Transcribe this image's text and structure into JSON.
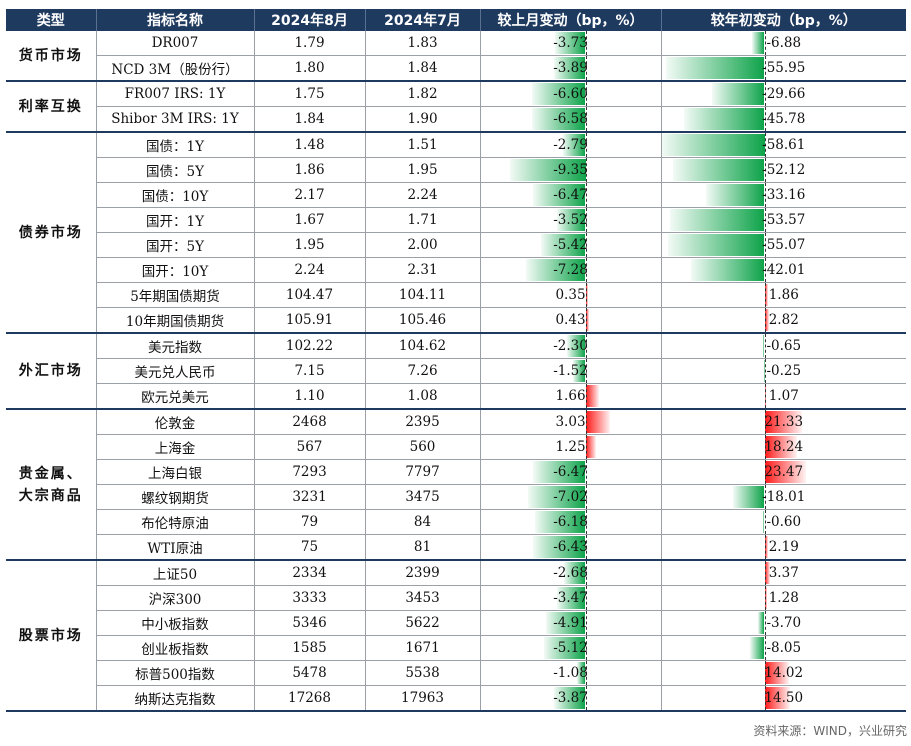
{
  "headers": [
    "类型",
    "指标名称",
    "2024年8月",
    "2024年7月",
    "较上月变动（bp，%）",
    "较年初变动（bp，%）"
  ],
  "colors": {
    "header_bg": "#1f3a5f",
    "positive": "#ff1a1a",
    "negative": "#0ea34a"
  },
  "groups": [
    {
      "name": "货币市场",
      "rows": [
        {
          "name": "DR007",
          "aug": "1.79",
          "jul": "1.83",
          "mom": "-3.73",
          "ytd": "-6.88"
        },
        {
          "name": "NCD 3M（股份行）",
          "aug": "1.80",
          "jul": "1.84",
          "mom": "-3.89",
          "ytd": "-55.95"
        }
      ]
    },
    {
      "name": "利率互换",
      "rows": [
        {
          "name": "FR007 IRS: 1Y",
          "aug": "1.75",
          "jul": "1.82",
          "mom": "-6.60",
          "ytd": "-29.66"
        },
        {
          "name": "Shibor 3M IRS: 1Y",
          "aug": "1.84",
          "jul": "1.90",
          "mom": "-6.58",
          "ytd": "-45.78"
        }
      ]
    },
    {
      "name": "债券市场",
      "rows": [
        {
          "name": "国债：1Y",
          "aug": "1.48",
          "jul": "1.51",
          "mom": "-2.79",
          "ytd": "-58.61"
        },
        {
          "name": "国债：5Y",
          "aug": "1.86",
          "jul": "1.95",
          "mom": "-9.35",
          "ytd": "-52.12"
        },
        {
          "name": "国债：10Y",
          "aug": "2.17",
          "jul": "2.24",
          "mom": "-6.47",
          "ytd": "-33.16"
        },
        {
          "name": "国开：1Y",
          "aug": "1.67",
          "jul": "1.71",
          "mom": "-3.52",
          "ytd": "-53.57"
        },
        {
          "name": "国开：5Y",
          "aug": "1.95",
          "jul": "2.00",
          "mom": "-5.42",
          "ytd": "-55.07"
        },
        {
          "name": "国开：10Y",
          "aug": "2.24",
          "jul": "2.31",
          "mom": "-7.28",
          "ytd": "-42.01"
        },
        {
          "name": "5年期国债期货",
          "aug": "104.47",
          "jul": "104.11",
          "mom": "0.35",
          "ytd": "1.86"
        },
        {
          "name": "10年期国债期货",
          "aug": "105.91",
          "jul": "105.46",
          "mom": "0.43",
          "ytd": "2.82"
        }
      ]
    },
    {
      "name": "外汇市场",
      "rows": [
        {
          "name": "美元指数",
          "aug": "102.22",
          "jul": "104.62",
          "mom": "-2.30",
          "ytd": "-0.65"
        },
        {
          "name": "美元兑人民币",
          "aug": "7.15",
          "jul": "7.26",
          "mom": "-1.52",
          "ytd": "-0.25"
        },
        {
          "name": "欧元兑美元",
          "aug": "1.10",
          "jul": "1.08",
          "mom": "1.66",
          "ytd": "1.07"
        }
      ]
    },
    {
      "name": "贵金属、\n大宗商品",
      "rows": [
        {
          "name": "伦敦金",
          "aug": "2468",
          "jul": "2395",
          "mom": "3.03",
          "ytd": "21.33"
        },
        {
          "name": "上海金",
          "aug": "567",
          "jul": "560",
          "mom": "1.25",
          "ytd": "18.24"
        },
        {
          "name": "上海白银",
          "aug": "7293",
          "jul": "7797",
          "mom": "-6.47",
          "ytd": "23.47"
        },
        {
          "name": "螺纹钢期货",
          "aug": "3231",
          "jul": "3475",
          "mom": "-7.02",
          "ytd": "-18.01"
        },
        {
          "name": "布伦特原油",
          "aug": "79",
          "jul": "84",
          "mom": "-6.18",
          "ytd": "-0.60"
        },
        {
          "name": "WTI原油",
          "aug": "75",
          "jul": "81",
          "mom": "-6.43",
          "ytd": "2.19"
        }
      ]
    },
    {
      "name": "股票市场",
      "rows": [
        {
          "name": "上证50",
          "aug": "2334",
          "jul": "2399",
          "mom": "-2.68",
          "ytd": "3.37"
        },
        {
          "name": "沪深300",
          "aug": "3333",
          "jul": "3453",
          "mom": "-3.47",
          "ytd": "1.28"
        },
        {
          "name": "中小板指数",
          "aug": "5346",
          "jul": "5622",
          "mom": "-4.91",
          "ytd": "-3.70"
        },
        {
          "name": "创业板指数",
          "aug": "1585",
          "jul": "1671",
          "mom": "-5.12",
          "ytd": "-8.05"
        },
        {
          "name": "标普500指数",
          "aug": "5478",
          "jul": "5538",
          "mom": "-1.08",
          "ytd": "14.02"
        },
        {
          "name": "纳斯达克指数",
          "aug": "17268",
          "jul": "17963",
          "mom": "-3.87",
          "ytd": "14.50"
        }
      ]
    }
  ],
  "source": "资料来源：WIND，兴业研究"
}
